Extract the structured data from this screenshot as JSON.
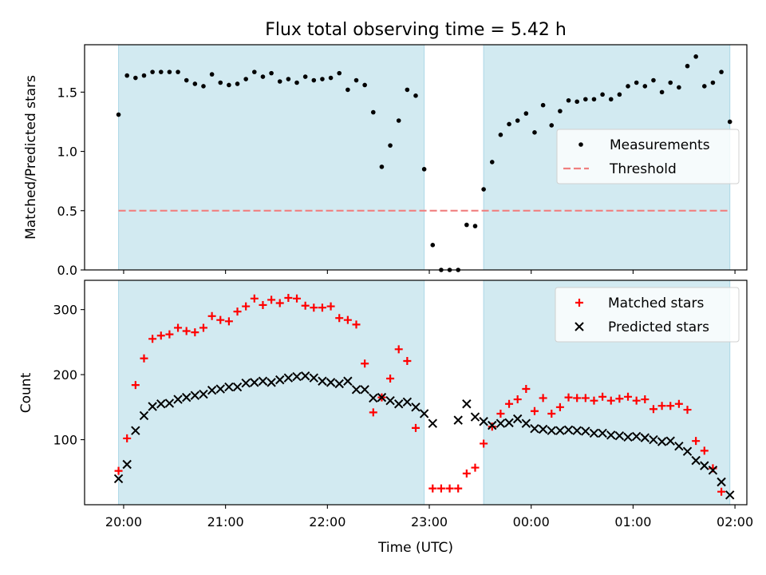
{
  "figure": {
    "title": "Flux total observing time = 5.42 h",
    "shading_color": "#add8e6",
    "shaded_intervals": [
      [
        "19:57",
        "22:57"
      ],
      [
        "23:32",
        "01:57"
      ]
    ]
  },
  "chart_data": [
    {
      "type": "scatter",
      "ylabel": "Matched/Predicted stars",
      "xlim": [
        "19:37",
        "02:07"
      ],
      "ylim": [
        0,
        1.9
      ],
      "yticks": [
        "0.0",
        "0.5",
        "1.0",
        "1.5"
      ],
      "ytick_values": [
        0,
        0.5,
        1.0,
        1.5
      ],
      "legend": {
        "placement": "center-right",
        "entries": [
          "Measurements",
          "Threshold"
        ]
      },
      "threshold": {
        "name": "Threshold",
        "value": 0.5,
        "color": "#f08080",
        "style": "dashed"
      },
      "series": [
        {
          "name": "Measurements",
          "marker": "dot",
          "color": "#000000",
          "x": [
            "19:57",
            "20:02",
            "20:07",
            "20:12",
            "20:17",
            "20:22",
            "20:27",
            "20:32",
            "20:37",
            "20:42",
            "20:47",
            "20:52",
            "20:57",
            "21:02",
            "21:07",
            "21:12",
            "21:17",
            "21:22",
            "21:27",
            "21:32",
            "21:37",
            "21:42",
            "21:47",
            "21:52",
            "21:57",
            "22:02",
            "22:07",
            "22:12",
            "22:17",
            "22:22",
            "22:27",
            "22:32",
            "22:37",
            "22:42",
            "22:47",
            "22:52",
            "22:57",
            "23:02",
            "23:07",
            "23:12",
            "23:17",
            "23:22",
            "23:27",
            "23:32",
            "23:37",
            "23:42",
            "23:47",
            "23:52",
            "23:57",
            "00:02",
            "00:07",
            "00:12",
            "00:17",
            "00:22",
            "00:27",
            "00:32",
            "00:37",
            "00:42",
            "00:47",
            "00:52",
            "00:57",
            "01:02",
            "01:07",
            "01:12",
            "01:17",
            "01:22",
            "01:27",
            "01:32",
            "01:37",
            "01:42",
            "01:47",
            "01:52",
            "01:57"
          ],
          "y": [
            1.31,
            1.64,
            1.62,
            1.64,
            1.67,
            1.67,
            1.67,
            1.67,
            1.6,
            1.57,
            1.55,
            1.65,
            1.58,
            1.56,
            1.57,
            1.61,
            1.67,
            1.63,
            1.66,
            1.59,
            1.61,
            1.58,
            1.63,
            1.6,
            1.61,
            1.62,
            1.66,
            1.52,
            1.6,
            1.56,
            1.33,
            0.87,
            1.05,
            1.26,
            1.52,
            1.47,
            0.85,
            0.21,
            0.0,
            0.0,
            0.0,
            0.38,
            0.37,
            0.68,
            0.91,
            1.14,
            1.23,
            1.26,
            1.32,
            1.16,
            1.39,
            1.22,
            1.34,
            1.43,
            1.42,
            1.44,
            1.44,
            1.48,
            1.44,
            1.48,
            1.55,
            1.58,
            1.55,
            1.6,
            1.5,
            1.58,
            1.54,
            1.72,
            1.8,
            1.55,
            1.58,
            1.67,
            1.25
          ]
        }
      ]
    },
    {
      "type": "scatter",
      "xlabel": "Time (UTC)",
      "ylabel": "Count",
      "xlim": [
        "19:37",
        "02:07"
      ],
      "ylim": [
        0,
        345
      ],
      "xticks": [
        "20:00",
        "21:00",
        "22:00",
        "23:00",
        "00:00",
        "01:00",
        "02:00"
      ],
      "yticks": [
        "100",
        "200",
        "300"
      ],
      "ytick_values": [
        100,
        200,
        300
      ],
      "legend": {
        "placement": "top-right",
        "entries": [
          "Matched stars",
          "Predicted stars"
        ]
      },
      "series": [
        {
          "name": "Matched stars",
          "marker": "plus",
          "color": "#ff0000",
          "x": [
            "19:57",
            "20:02",
            "20:07",
            "20:12",
            "20:17",
            "20:22",
            "20:27",
            "20:32",
            "20:37",
            "20:42",
            "20:47",
            "20:52",
            "20:57",
            "21:02",
            "21:07",
            "21:12",
            "21:17",
            "21:22",
            "21:27",
            "21:32",
            "21:37",
            "21:42",
            "21:47",
            "21:52",
            "21:57",
            "22:02",
            "22:07",
            "22:12",
            "22:17",
            "22:22",
            "22:27",
            "22:32",
            "22:37",
            "22:42",
            "22:47",
            "22:52",
            "22:57",
            "23:02",
            "23:07",
            "23:12",
            "23:17",
            "23:22",
            "23:27",
            "23:32",
            "23:37",
            "23:42",
            "23:47",
            "23:52",
            "23:57",
            "00:02",
            "00:07",
            "00:12",
            "00:17",
            "00:22",
            "00:27",
            "00:32",
            "00:37",
            "00:42",
            "00:47",
            "00:52",
            "00:57",
            "01:02",
            "01:07",
            "01:12",
            "01:17",
            "01:22",
            "01:27",
            "01:32",
            "01:37",
            "01:42",
            "01:47",
            "01:52",
            "01:57"
          ],
          "y": [
            52,
            102,
            184,
            225,
            255,
            260,
            262,
            272,
            267,
            265,
            272,
            290,
            284,
            282,
            297,
            305,
            317,
            307,
            315,
            310,
            318,
            317,
            306,
            303,
            303,
            305,
            287,
            284,
            277,
            217,
            142,
            165,
            194,
            239,
            221,
            118,
            null,
            25,
            25,
            25,
            25,
            48,
            57,
            94,
            120,
            140,
            155,
            162,
            178,
            144,
            164,
            140,
            150,
            165,
            164,
            164,
            160,
            166,
            160,
            163,
            166,
            160,
            162,
            147,
            152,
            152,
            155,
            146,
            98,
            83,
            56,
            20,
            null
          ],
          "y_note": "null where not shown"
        },
        {
          "name": "Predicted stars",
          "marker": "x",
          "color": "#000000",
          "x": [
            "19:57",
            "20:02",
            "20:07",
            "20:12",
            "20:17",
            "20:22",
            "20:27",
            "20:32",
            "20:37",
            "20:42",
            "20:47",
            "20:52",
            "20:57",
            "21:02",
            "21:07",
            "21:12",
            "21:17",
            "21:22",
            "21:27",
            "21:32",
            "21:37",
            "21:42",
            "21:47",
            "21:52",
            "21:57",
            "22:02",
            "22:07",
            "22:12",
            "22:17",
            "22:22",
            "22:27",
            "22:32",
            "22:37",
            "22:42",
            "22:47",
            "22:52",
            "22:57",
            "23:02",
            "23:17",
            "23:22",
            "23:27",
            "23:32",
            "23:37",
            "23:42",
            "23:47",
            "23:52",
            "23:57",
            "00:02",
            "00:07",
            "00:12",
            "00:17",
            "00:22",
            "00:27",
            "00:32",
            "00:37",
            "00:42",
            "00:47",
            "00:52",
            "00:57",
            "01:02",
            "01:07",
            "01:12",
            "01:17",
            "01:22",
            "01:27",
            "01:32",
            "01:37",
            "01:42",
            "01:47",
            "01:52",
            "01:57"
          ],
          "y": [
            40,
            62,
            114,
            137,
            151,
            155,
            156,
            162,
            165,
            168,
            170,
            176,
            178,
            181,
            181,
            187,
            188,
            190,
            188,
            192,
            195,
            197,
            198,
            195,
            190,
            188,
            186,
            190,
            177,
            177,
            164,
            165,
            160,
            155,
            158,
            150,
            140,
            125,
            130,
            155,
            135,
            128,
            122,
            125,
            126,
            132,
            125,
            117,
            116,
            114,
            114,
            115,
            114,
            113,
            110,
            110,
            107,
            106,
            104,
            105,
            103,
            100,
            97,
            98,
            90,
            82,
            68,
            60,
            53,
            35,
            15
          ]
        }
      ]
    }
  ]
}
